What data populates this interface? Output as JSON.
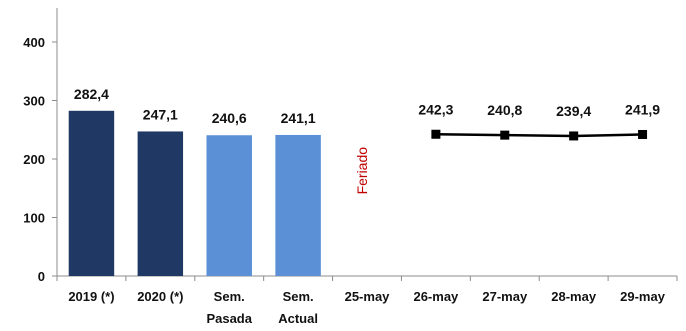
{
  "chart_data": {
    "type": "bar",
    "categories": [
      [
        "2019 (*)"
      ],
      [
        "2020 (*)"
      ],
      [
        "Sem.",
        "Pasada"
      ],
      [
        "Sem.",
        "Actual"
      ],
      [
        "25-may"
      ],
      [
        "26-may"
      ],
      [
        "27-may"
      ],
      [
        "28-may"
      ],
      [
        "29-may"
      ]
    ],
    "ylim": [
      0,
      400
    ],
    "yticks": [
      0,
      100,
      200,
      300,
      400
    ],
    "grid": false,
    "bars": [
      {
        "category_index": 0,
        "value": 282.4,
        "label": "282,4",
        "color": "#1f3864"
      },
      {
        "category_index": 1,
        "value": 247.1,
        "label": "247,1",
        "color": "#1f3864"
      },
      {
        "category_index": 2,
        "value": 240.6,
        "label": "240,6",
        "color": "#5b8fd6"
      },
      {
        "category_index": 3,
        "value": 241.1,
        "label": "241,1",
        "color": "#5b8fd6"
      }
    ],
    "line": {
      "color": "#000000",
      "points": [
        {
          "category_index": 5,
          "value": 242.3,
          "label": "242,3"
        },
        {
          "category_index": 6,
          "value": 240.8,
          "label": "240,8"
        },
        {
          "category_index": 7,
          "value": 239.4,
          "label": "239,4"
        },
        {
          "category_index": 8,
          "value": 241.9,
          "label": "241,9"
        }
      ]
    },
    "annotation": {
      "category_index": 4,
      "text": "Feriado",
      "color": "#c00000",
      "value": 180
    }
  }
}
